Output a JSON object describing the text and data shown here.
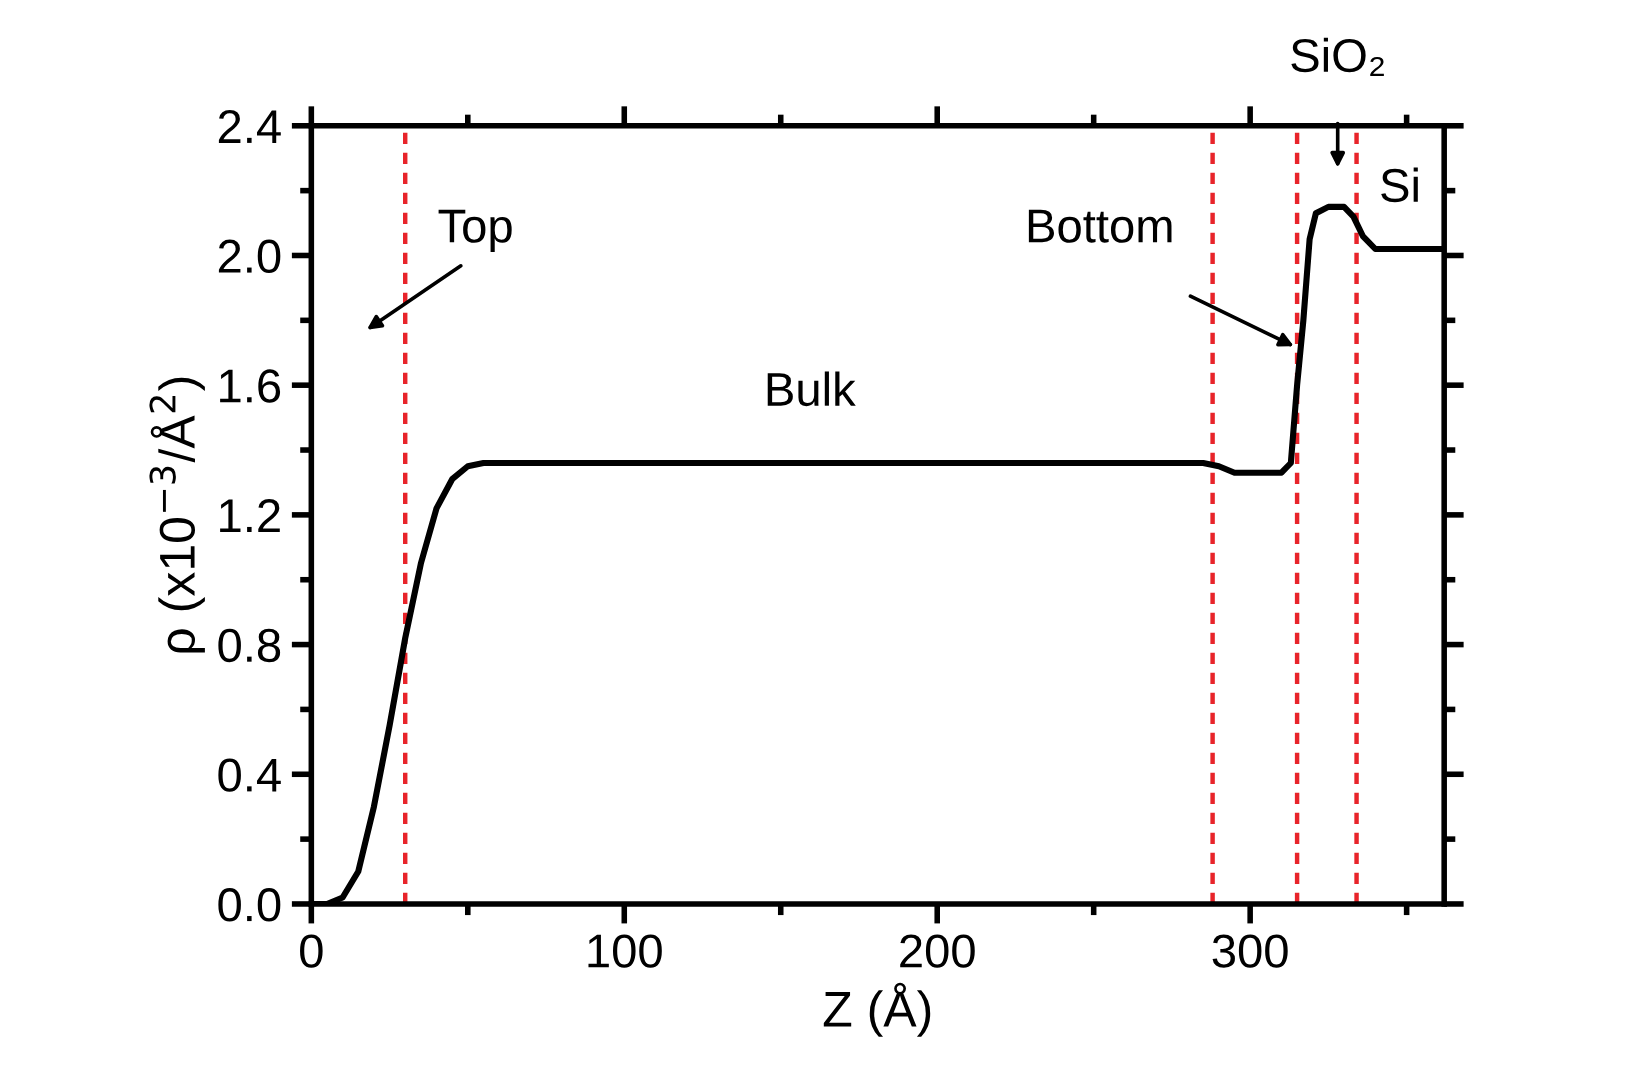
{
  "chart_data": {
    "type": "line",
    "xlabel": "Z (Å)",
    "ylabel": "ρ (x10$^{−3}$/Å$^{2}$)",
    "x": [
      0,
      5,
      10,
      15,
      20,
      25,
      30,
      35,
      40,
      45,
      50,
      55,
      100,
      200,
      285,
      290,
      295,
      310,
      313,
      315,
      317,
      319,
      321,
      325,
      330,
      333,
      336,
      340,
      350,
      362
    ],
    "series": [
      {
        "color": "#000000",
        "values": [
          0,
          0,
          0.02,
          0.1,
          0.3,
          0.55,
          0.82,
          1.05,
          1.22,
          1.31,
          1.35,
          1.36,
          1.36,
          1.36,
          1.36,
          1.35,
          1.33,
          1.33,
          1.36,
          1.6,
          1.8,
          2.05,
          2.13,
          2.15,
          2.15,
          2.12,
          2.06,
          2.02,
          2.02,
          2.02
        ]
      }
    ],
    "xlim": [
      0,
      362
    ],
    "ylim": [
      0,
      2.4
    ],
    "xticks": [
      0,
      100,
      200,
      300
    ],
    "yticks": [
      {
        "value": 0,
        "label": "0.0"
      },
      0.4,
      0.8,
      1.2,
      1.6,
      {
        "value": 2,
        "label": "2.0"
      },
      2.4
    ],
    "marker": "none",
    "line_style": "solid",
    "grid": false,
    "legend": false,
    "ref_lines": [
      {
        "axis": "x",
        "value": 30,
        "color": "#e8242a",
        "line_style": "dashed"
      },
      {
        "axis": "x",
        "value": 288,
        "color": "#e8242a",
        "line_style": "dashed"
      },
      {
        "axis": "x",
        "value": 315,
        "color": "#e8242a",
        "line_style": "dashed"
      },
      {
        "axis": "x",
        "value": 334,
        "color": "#e8242a",
        "line_style": "dashed"
      }
    ],
    "annotations": [
      "Top",
      {
        "text": "Bottom",
        "x": 314,
        "y": 1.72
      },
      "SiO₂",
      "Bulk",
      "Si"
    ]
  }
}
